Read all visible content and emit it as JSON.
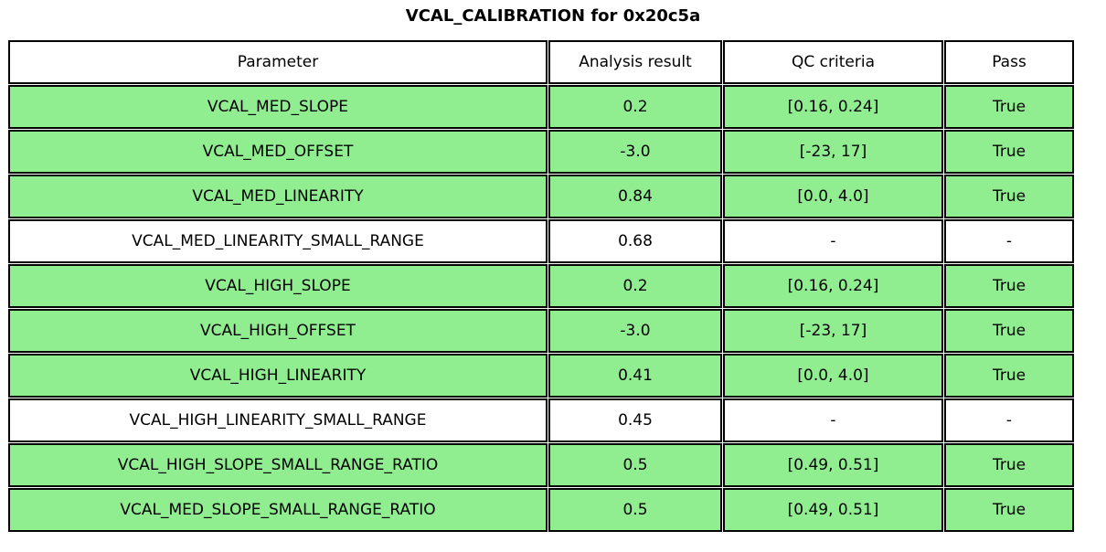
{
  "title": "VCAL_CALIBRATION for 0x20c5a",
  "colors": {
    "pass_row_background": "#90ee90",
    "neutral_row_background": "#ffffff",
    "header_row_background": "#ffffff",
    "border": "#000000",
    "text": "#000000"
  },
  "chart_data": {
    "type": "table",
    "title": "VCAL_CALIBRATION for 0x20c5a",
    "columns": [
      "Parameter",
      "Analysis result",
      "QC criteria",
      "Pass"
    ],
    "rows": [
      {
        "parameter": "VCAL_MED_SLOPE",
        "result": "0.2",
        "qc": "[0.16, 0.24]",
        "pass": "True",
        "highlight": true
      },
      {
        "parameter": "VCAL_MED_OFFSET",
        "result": "-3.0",
        "qc": "[-23, 17]",
        "pass": "True",
        "highlight": true
      },
      {
        "parameter": "VCAL_MED_LINEARITY",
        "result": "0.84",
        "qc": "[0.0, 4.0]",
        "pass": "True",
        "highlight": true
      },
      {
        "parameter": "VCAL_MED_LINEARITY_SMALL_RANGE",
        "result": "0.68",
        "qc": "-",
        "pass": "-",
        "highlight": false
      },
      {
        "parameter": "VCAL_HIGH_SLOPE",
        "result": "0.2",
        "qc": "[0.16, 0.24]",
        "pass": "True",
        "highlight": true
      },
      {
        "parameter": "VCAL_HIGH_OFFSET",
        "result": "-3.0",
        "qc": "[-23, 17]",
        "pass": "True",
        "highlight": true
      },
      {
        "parameter": "VCAL_HIGH_LINEARITY",
        "result": "0.41",
        "qc": "[0.0, 4.0]",
        "pass": "True",
        "highlight": true
      },
      {
        "parameter": "VCAL_HIGH_LINEARITY_SMALL_RANGE",
        "result": "0.45",
        "qc": "-",
        "pass": "-",
        "highlight": false
      },
      {
        "parameter": "VCAL_HIGH_SLOPE_SMALL_RANGE_RATIO",
        "result": "0.5",
        "qc": "[0.49, 0.51]",
        "pass": "True",
        "highlight": true
      },
      {
        "parameter": "VCAL_MED_SLOPE_SMALL_RANGE_RATIO",
        "result": "0.5",
        "qc": "[0.49, 0.51]",
        "pass": "True",
        "highlight": true
      }
    ]
  }
}
